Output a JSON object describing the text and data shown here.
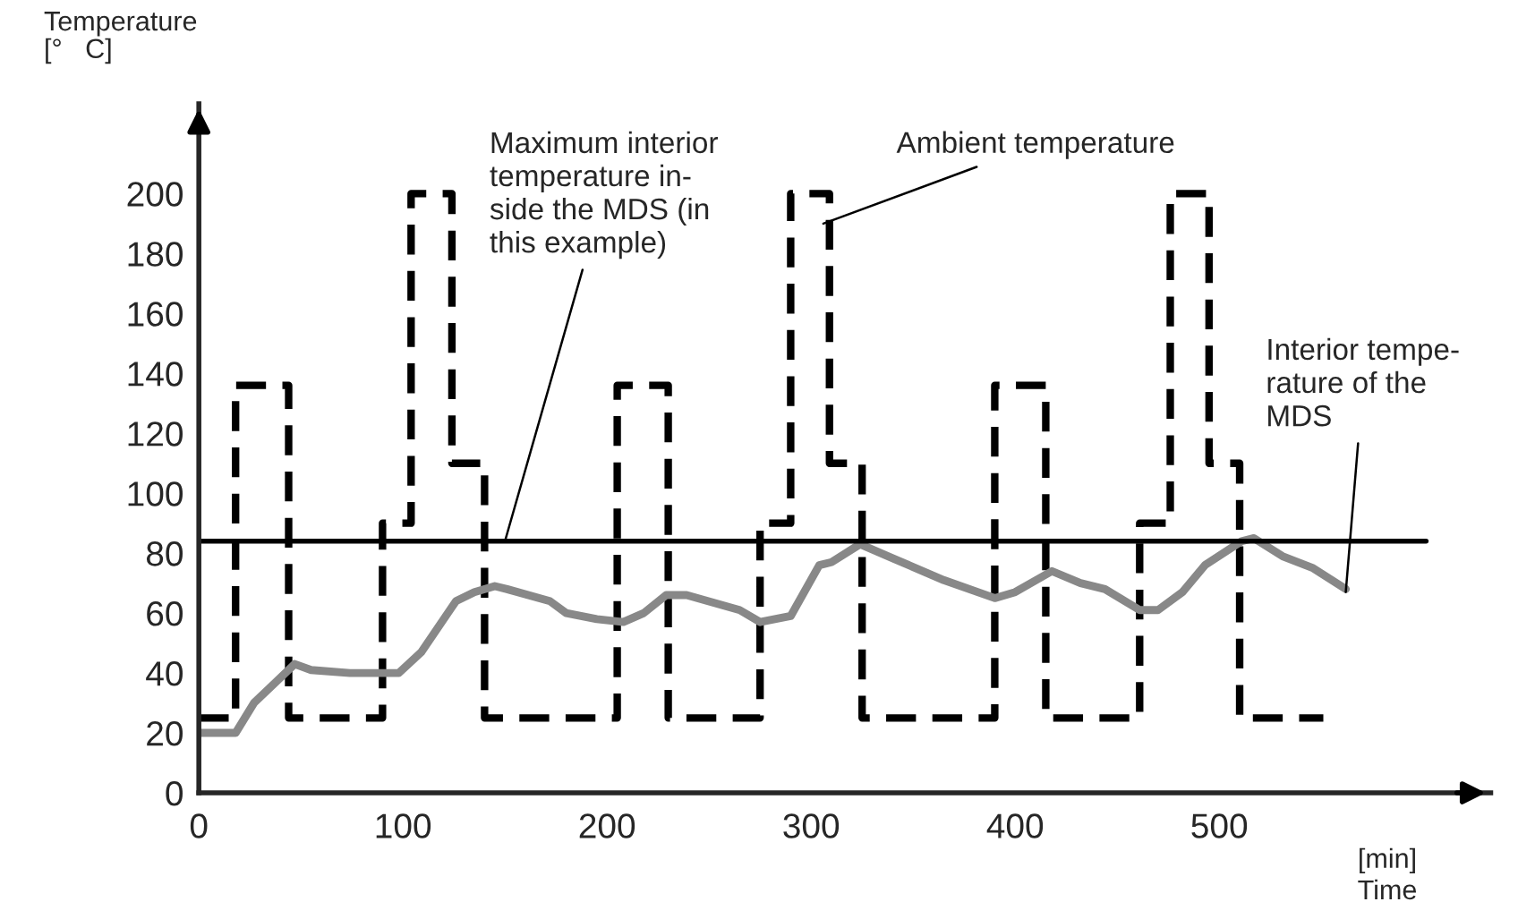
{
  "chart_data": {
    "type": "line",
    "xlabel": "[min]\nTime",
    "ylabel": "Temperature\n[°   C]",
    "xlim": [
      0,
      633
    ],
    "ylim": [
      0,
      230
    ],
    "xticks": [
      0,
      100,
      200,
      300,
      400,
      500
    ],
    "yticks": [
      0,
      20,
      40,
      60,
      80,
      100,
      120,
      140,
      160,
      180,
      200
    ],
    "series": [
      {
        "type": "step",
        "color": "#000000",
        "line_style": "dashed",
        "x": [
          0,
          18,
          44,
          90,
          104,
          124,
          140,
          205,
          230,
          275,
          290,
          309,
          325,
          390,
          415,
          461,
          476,
          495,
          510,
          551
        ],
        "values": [
          25,
          136,
          25,
          90,
          200,
          110,
          25,
          136,
          25,
          90,
          200,
          110,
          25,
          136,
          25,
          90,
          200,
          110,
          25,
          25
        ]
      },
      {
        "type": "line",
        "color": "#888888",
        "line_style": "solid",
        "x": [
          0,
          18,
          27,
          47,
          55,
          74,
          98,
          109,
          126,
          135,
          145,
          151,
          172,
          180,
          195,
          208,
          218,
          229,
          239,
          265,
          275,
          290,
          304,
          310,
          324,
          341,
          365,
          390,
          400,
          418,
          432,
          444,
          461,
          470,
          482,
          493,
          511,
          517,
          531,
          546,
          562
        ],
        "values": [
          20,
          20,
          30,
          43,
          41,
          40,
          40,
          47,
          64,
          67,
          69,
          68,
          64,
          60,
          58,
          57,
          60,
          66,
          66,
          61,
          57,
          59,
          76,
          77,
          83,
          78,
          71,
          65,
          67,
          74,
          70,
          68,
          61,
          61,
          67,
          76,
          84,
          85,
          79,
          75,
          68
        ]
      }
    ],
    "ref_lines": [
      {
        "axis": "y",
        "value": 84,
        "color": "#000000",
        "line_style": "solid"
      }
    ],
    "annotations": [
      {
        "text": "Maximum interior\ntemperature in-\nside the MDS (in\nthis example)",
        "x": 150,
        "y": 84
      },
      {
        "text": "Ambient temperature",
        "x": 306,
        "y": 190
      },
      {
        "text": "Interior tempe-\nrature of the\nMDS",
        "x": 562,
        "y": 67
      }
    ],
    "grid": false,
    "legend": false
  }
}
